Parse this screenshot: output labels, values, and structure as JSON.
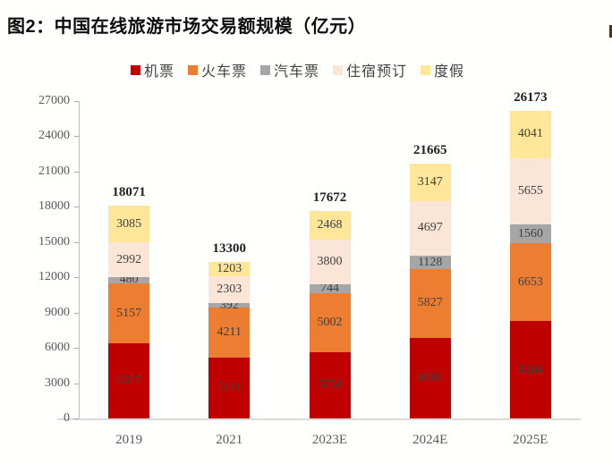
{
  "title": "图2：中国在线旅游市场交易额规模（亿元）",
  "colors": {
    "background": "#fffffe",
    "title_text": "#0d0d0d",
    "axis_line": "#bdbdbd",
    "baseline": "#d9d9d9",
    "tick_mark": "#a9a9a9",
    "tick_label": "#595959",
    "value_label": "#404040",
    "total_label": "#1f1f1f",
    "edge_mark": "#5f3200"
  },
  "chart_data": {
    "type": "bar",
    "stacked": true,
    "title": "图2：中国在线旅游市场交易额规模（亿元）",
    "xlabel": "",
    "ylabel": "",
    "categories": [
      "2019",
      "2021",
      "2023E",
      "2024E",
      "2025E"
    ],
    "series": [
      {
        "name": "机票",
        "color": "#c00000",
        "values": [
          6357,
          5191,
          5658,
          6866,
          8264
        ]
      },
      {
        "name": "火车票",
        "color": "#ed7d31",
        "values": [
          5157,
          4211,
          5002,
          5827,
          6653
        ]
      },
      {
        "name": "汽车票",
        "color": "#a6a6a6",
        "values": [
          480,
          392,
          744,
          1128,
          1560
        ]
      },
      {
        "name": "住宿预订",
        "color": "#fbe5d6",
        "values": [
          2992,
          2303,
          3800,
          4697,
          5655
        ]
      },
      {
        "name": "度假",
        "color": "#ffe699",
        "values": [
          3085,
          1203,
          2468,
          3147,
          4041
        ]
      }
    ],
    "totals": [
      18071,
      13300,
      17672,
      21665,
      26173
    ],
    "y_ticks": [
      0,
      3000,
      6000,
      9000,
      12000,
      15000,
      18000,
      21000,
      24000,
      27000
    ],
    "ylim": [
      0,
      27000
    ],
    "legend_position": "top",
    "grid": false
  }
}
